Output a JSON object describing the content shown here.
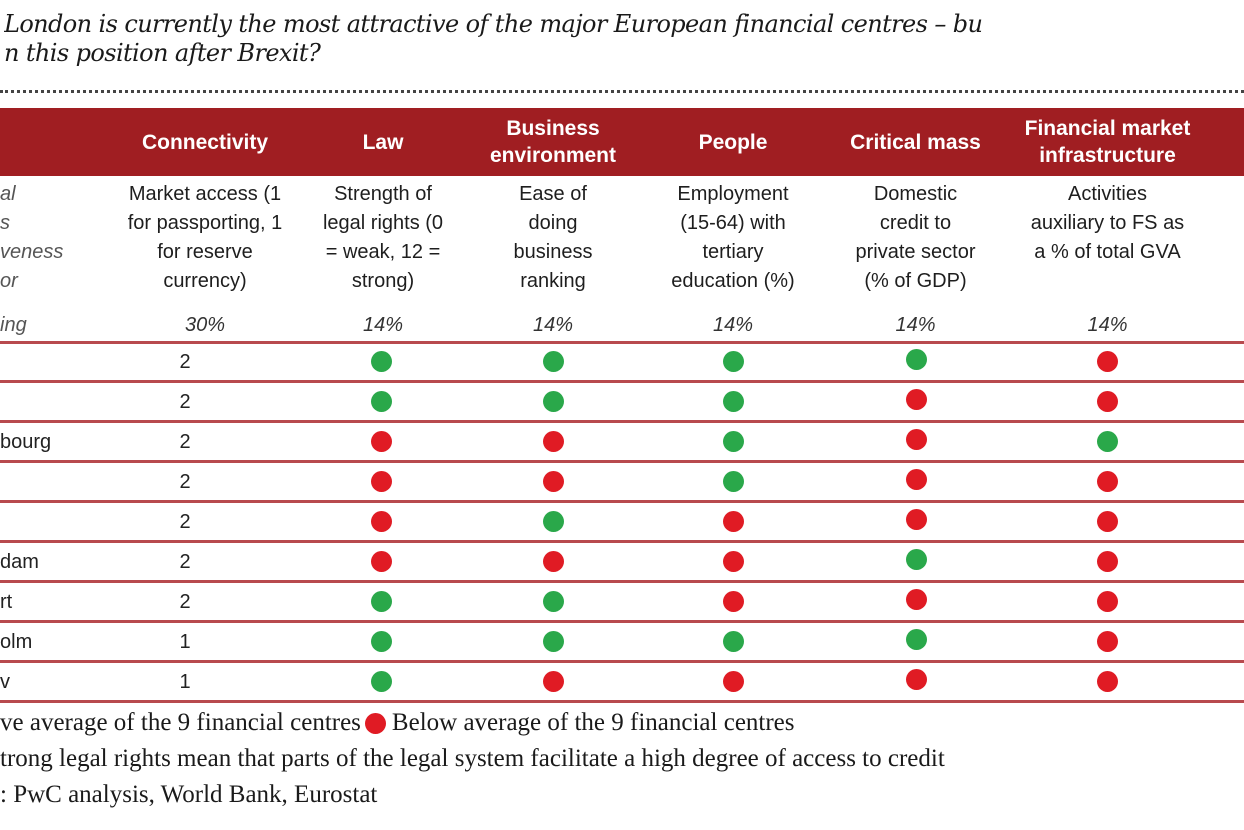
{
  "title": {
    "line1": "London is currently the most attractive of the major European financial centres – bu",
    "line2": "n this position after Brexit?"
  },
  "colors": {
    "above": "#2aa84a",
    "below": "#e01b24",
    "header_band": "#a01e22",
    "row_rule": "#b84a4e"
  },
  "chart_data": {
    "type": "table",
    "columns": [
      {
        "key": "label",
        "header": "",
        "metric": "al\ns\nveness\nor",
        "weighting": "ing"
      },
      {
        "key": "connectivity",
        "header": "Connectivity",
        "metric": "Market access (1\nfor passporting, 1\nfor reserve\ncurrency)",
        "weighting": "30%"
      },
      {
        "key": "law",
        "header": "Law",
        "metric": "Strength of\nlegal rights (0\n= weak, 12 =\nstrong)",
        "weighting": "14%"
      },
      {
        "key": "business",
        "header": "Business\nenvironment",
        "metric": "Ease of\ndoing\nbusiness\nranking",
        "weighting": "14%"
      },
      {
        "key": "people",
        "header": "People",
        "metric": "Employment\n(15-64) with\ntertiary\neducation (%)",
        "weighting": "14%"
      },
      {
        "key": "critical",
        "header": "Critical mass",
        "metric": "Domestic\ncredit to\nprivate sector\n(% of GDP)",
        "weighting": "14%"
      },
      {
        "key": "fmi",
        "header": "Financial market\ninfrastructure",
        "metric": "Activities\nauxiliary to FS as\na % of total GVA",
        "weighting": "14%"
      }
    ],
    "rows": [
      {
        "label": "",
        "connectivity": "2",
        "law": "above",
        "business": "above",
        "people": "above",
        "critical": "above",
        "fmi": "below"
      },
      {
        "label": "",
        "connectivity": "2",
        "law": "above",
        "business": "above",
        "people": "above",
        "critical": "below",
        "fmi": "below"
      },
      {
        "label": "bourg",
        "connectivity": "2",
        "law": "below",
        "business": "below",
        "people": "above",
        "critical": "below",
        "fmi": "above"
      },
      {
        "label": "",
        "connectivity": "2",
        "law": "below",
        "business": "below",
        "people": "above",
        "critical": "below",
        "fmi": "below"
      },
      {
        "label": "",
        "connectivity": "2",
        "law": "below",
        "business": "above",
        "people": "below",
        "critical": "below",
        "fmi": "below"
      },
      {
        "label": "dam",
        "connectivity": "2",
        "law": "below",
        "business": "below",
        "people": "below",
        "critical": "above",
        "fmi": "below"
      },
      {
        "label": "rt",
        "connectivity": "2",
        "law": "above",
        "business": "above",
        "people": "below",
        "critical": "below",
        "fmi": "below"
      },
      {
        "label": "olm",
        "connectivity": "1",
        "law": "above",
        "business": "above",
        "people": "above",
        "critical": "above",
        "fmi": "below"
      },
      {
        "label": "v",
        "connectivity": "1",
        "law": "above",
        "business": "below",
        "people": "below",
        "critical": "below",
        "fmi": "below"
      }
    ],
    "legend": {
      "above": "ve average of the 9 financial centres",
      "below": "Below average of the 9 financial centres"
    }
  },
  "footer": {
    "legend_above": "ve average of the 9 financial centres",
    "legend_below": "Below average of the 9 financial centres",
    "note": "trong legal rights mean that parts of the legal system facilitate a high degree of access to credit",
    "source": ": PwC analysis, World Bank, Eurostat"
  }
}
